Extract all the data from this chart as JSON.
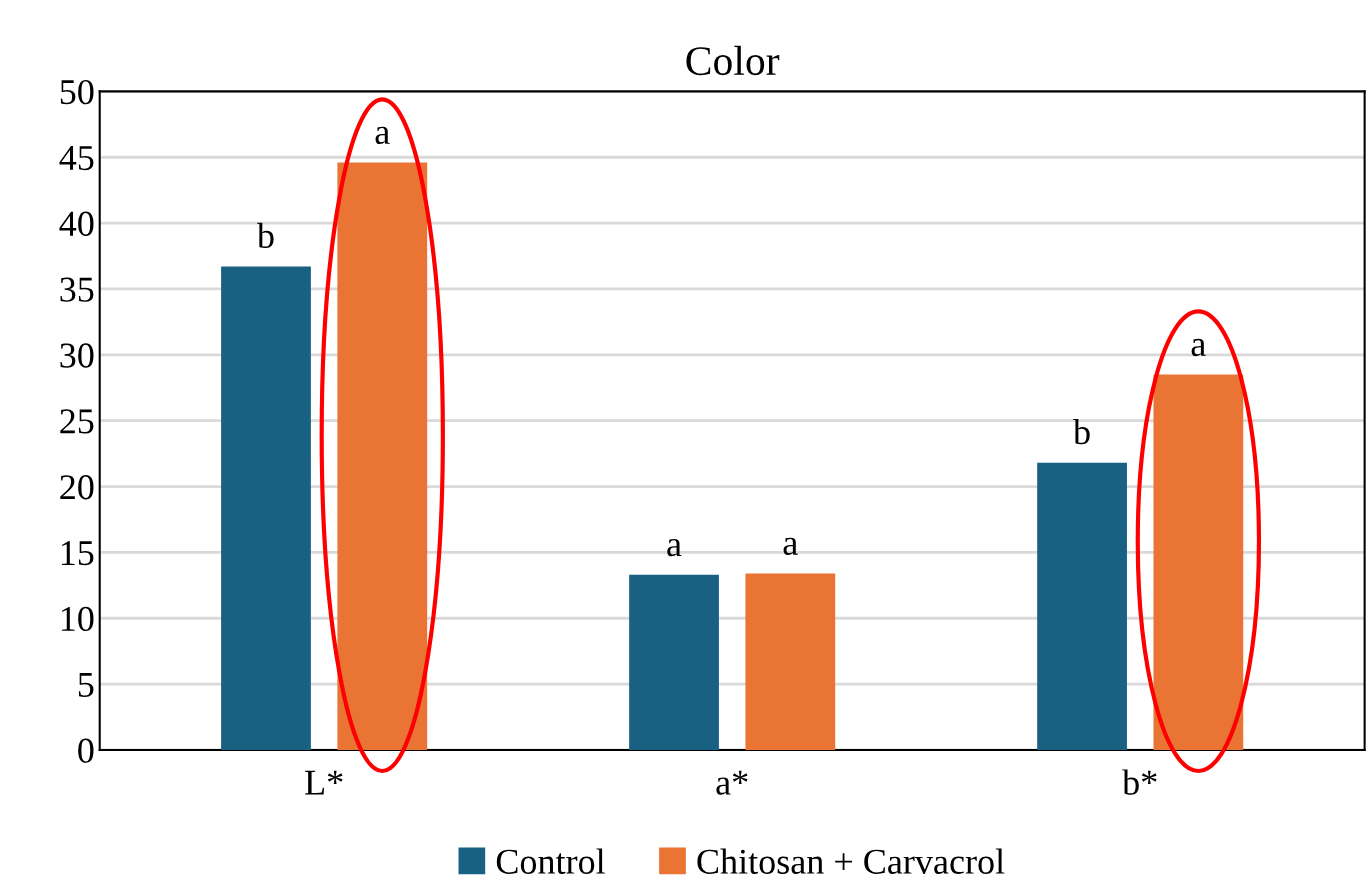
{
  "chart_data": {
    "type": "bar",
    "title": "Color",
    "categories": [
      "L*",
      "a*",
      "b*"
    ],
    "series": [
      {
        "name": "Control",
        "color": "#186183",
        "values": [
          36.7,
          13.3,
          21.8
        ]
      },
      {
        "name": "Chitosan + Carvacrol",
        "color": "#e97434",
        "values": [
          44.6,
          13.4,
          28.5
        ]
      }
    ],
    "ylim": [
      0,
      50
    ],
    "yticks": [
      0,
      5,
      10,
      15,
      20,
      25,
      30,
      35,
      40,
      45,
      50
    ],
    "grid": "y",
    "legend": "bottom",
    "annotations": [
      "b",
      "a",
      "a",
      "a",
      "b",
      "a"
    ]
  }
}
